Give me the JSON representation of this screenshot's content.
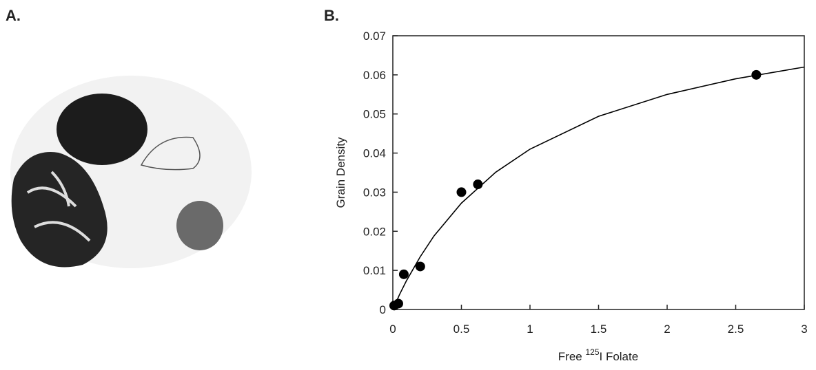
{
  "panel_a": {
    "label": "A."
  },
  "chart_data": {
    "type": "scatter",
    "title": "B.",
    "x_label": [
      "Free ",
      "125",
      "I Folate"
    ],
    "y_label": "Grain Density",
    "xlim": [
      0,
      3
    ],
    "ylim": [
      0,
      0.07
    ],
    "xticks": [
      0,
      0.5,
      1,
      1.5,
      2,
      2.5,
      3
    ],
    "yticks": [
      0,
      0.01,
      0.02,
      0.03,
      0.04,
      0.05,
      0.06,
      0.07
    ],
    "color": "#000000",
    "points": {
      "x": [
        0.01,
        0.04,
        0.08,
        0.2,
        0.5,
        0.62,
        2.65
      ],
      "values": [
        0.001,
        0.0015,
        0.009,
        0.011,
        0.03,
        0.032,
        0.06
      ]
    },
    "fit": {
      "type": "line",
      "x": [
        0,
        0.05,
        0.1,
        0.2,
        0.3,
        0.5,
        0.75,
        1,
        1.5,
        2,
        2.5,
        3
      ],
      "values": [
        0,
        0.0039,
        0.0074,
        0.0135,
        0.0188,
        0.0272,
        0.0351,
        0.041,
        0.0494,
        0.055,
        0.059,
        0.062
      ]
    }
  }
}
